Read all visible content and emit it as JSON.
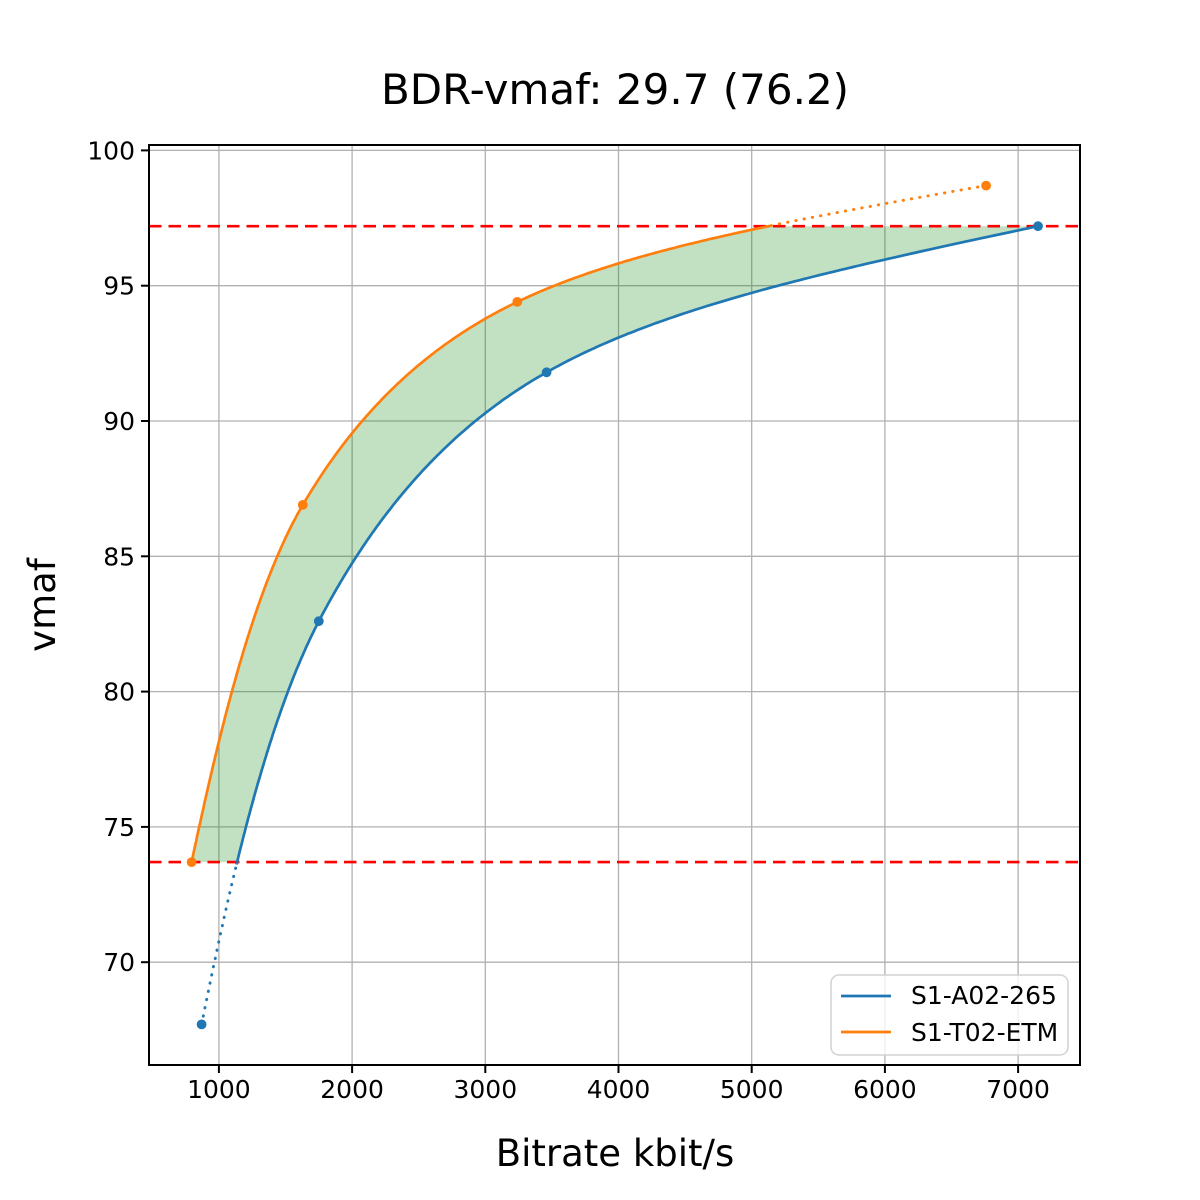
{
  "chart_data": {
    "type": "line",
    "title": "BDR-vmaf: 29.7 (76.2)",
    "xlabel": "Bitrate kbit/s",
    "ylabel": "vmaf",
    "xlim": [
      475,
      7465
    ],
    "ylim": [
      66.2,
      100.2
    ],
    "x_ticks": [
      1000,
      2000,
      3000,
      4000,
      5000,
      6000,
      7000
    ],
    "y_ticks": [
      70,
      75,
      80,
      85,
      90,
      95,
      100
    ],
    "grid": true,
    "legend_position": "lower-right",
    "series": [
      {
        "name": "S1-A02-265",
        "color": "#1f77b4",
        "points": [
          [
            870,
            67.7
          ],
          [
            1750,
            82.6
          ],
          [
            3460,
            91.8
          ],
          [
            7150,
            97.2
          ]
        ]
      },
      {
        "name": "S1-T02-ETM",
        "color": "#ff7f0e",
        "points": [
          [
            795,
            73.7
          ],
          [
            1630,
            86.9
          ],
          [
            3240,
            94.4
          ],
          [
            6760,
            98.7
          ]
        ]
      }
    ],
    "overlap_band": {
      "low": 73.7,
      "high": 97.2
    },
    "reference_lines": {
      "values": [
        97.2,
        73.7
      ],
      "color": "#ff0000",
      "style": "dashed"
    },
    "fill": {
      "color": "#008000",
      "opacity": 0.24
    }
  },
  "colors": {
    "background": "#ffffff",
    "grid": "#b0b0b0",
    "spine": "#000000",
    "legend_border": "#d2d2d2"
  }
}
